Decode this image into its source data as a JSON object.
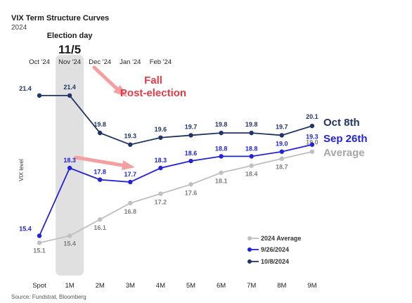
{
  "chart_data": {
    "type": "line",
    "title": "VIX Term Structure Curves",
    "subtitle": "2024",
    "ylabel": "VIX level",
    "source": "Source: Fundstrat, Bloomberg",
    "categories": [
      "Spot",
      "1M",
      "2M",
      "3M",
      "4M",
      "5M",
      "6M",
      "7M",
      "8M",
      "9M"
    ],
    "top_categories": [
      "Oct '24",
      "Nov '24",
      "Dec '24",
      "Jan '24",
      "Feb '24"
    ],
    "ylim": [
      14,
      22.6
    ],
    "grid": false,
    "legend_position": "bottom-right",
    "series": [
      {
        "name": "2024 Average",
        "color": "#bfbfbf",
        "values": [
          15.1,
          15.4,
          16.1,
          16.8,
          17.2,
          17.6,
          18.1,
          18.4,
          18.7,
          19.0
        ]
      },
      {
        "name": "9/26/2024",
        "color": "#2222dd",
        "values": [
          15.4,
          18.3,
          17.8,
          17.7,
          18.3,
          18.6,
          18.8,
          18.8,
          19.0,
          19.3
        ]
      },
      {
        "name": "10/8/2024",
        "color": "#1f3566",
        "values": [
          21.4,
          21.4,
          19.8,
          19.3,
          19.6,
          19.7,
          19.8,
          19.8,
          19.7,
          20.1
        ]
      }
    ],
    "end_labels": [
      {
        "text": "Oct 8th",
        "color": "#1f3566"
      },
      {
        "text": "Sep 26th",
        "color": "#2222dd"
      },
      {
        "text": "Average",
        "color": "#a6a6a6"
      }
    ],
    "annotations": {
      "election_label": "Election day",
      "election_date": "11/5",
      "fall_line1": "Fall",
      "fall_line2": "Post-election",
      "fall_color": "#e63946",
      "arrow_color": "#f4a0a0",
      "highlight_color": "#e0e0e0"
    }
  }
}
